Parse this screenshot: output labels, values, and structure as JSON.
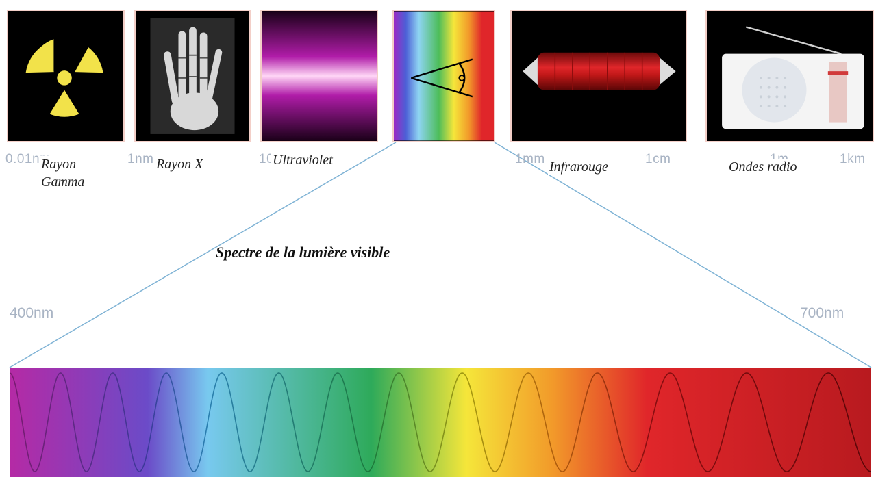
{
  "panels": [
    {
      "id": "gamma",
      "icon": "radiation-symbol-icon"
    },
    {
      "id": "xray",
      "icon": "hand-xray-icon"
    },
    {
      "id": "ultraviolet",
      "icon": "uv-glow-icon"
    },
    {
      "id": "visible",
      "icon": "eye-prism-icon"
    },
    {
      "id": "infrared",
      "icon": "heating-element-icon"
    },
    {
      "id": "radio",
      "icon": "radio-receiver-icon"
    }
  ],
  "scale_ticks": [
    "0.01nm",
    "1nm",
    "10",
    "1mm",
    "1cm",
    "1m",
    "1km"
  ],
  "band_labels": {
    "gamma_line1": "Rayon",
    "gamma_line2": "Gamma",
    "xray": "Rayon X",
    "ultraviolet": "Ultraviolet",
    "infrared": "Infrarouge",
    "radio": "Ondes radio"
  },
  "title": "Spectre de la lumière visible",
  "range_start": "400nm",
  "range_end": "700nm",
  "colors": {
    "panel_border": "#f3cfc8",
    "tick_text": "#a9b4c4",
    "connector": "#7fb3d5",
    "radiation": "#f2e24a",
    "spectrum": [
      "#b52aa5",
      "#6b4bc8",
      "#78c9ef",
      "#2eaa5a",
      "#f5e63a",
      "#f29a2a",
      "#e0262a",
      "#b81a1f"
    ]
  },
  "wave": {
    "cycles": 13.5
  }
}
